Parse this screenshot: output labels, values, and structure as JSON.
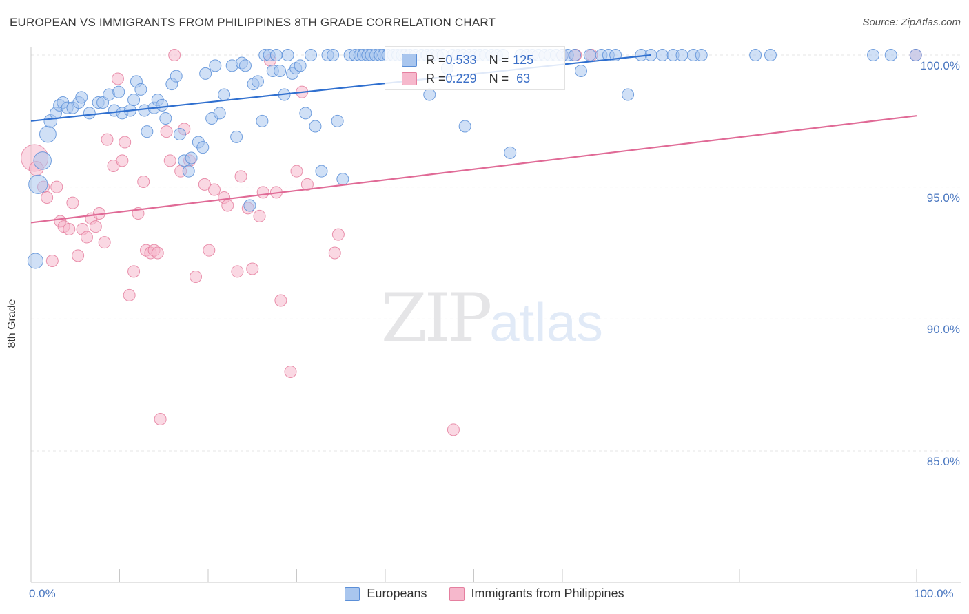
{
  "title": "EUROPEAN VS IMMIGRANTS FROM PHILIPPINES 8TH GRADE CORRELATION CHART",
  "source": "Source: ZipAtlas.com",
  "watermark": {
    "zip": "ZIP",
    "atlas": "atlas"
  },
  "legend": {
    "europeans": {
      "r_label": "R = ",
      "r_value": "0.533",
      "n_label": "N = ",
      "n_value": "125"
    },
    "philippines": {
      "r_label": "R = ",
      "r_value": "0.229",
      "n_label": "N = ",
      "n_value": " 63"
    }
  },
  "bottom_legend": {
    "europeans": "Europeans",
    "philippines": "Immigrants from Philippines"
  },
  "colors": {
    "blue_fill": "#a9c6ee",
    "blue_stroke": "#5b8fd8",
    "blue_line": "#2f6fcf",
    "pink_fill": "#f6b8cc",
    "pink_stroke": "#e57f9f",
    "pink_line": "#e06a96",
    "tick_text": "#4a77c0",
    "grid": "#e6e6e6"
  },
  "chart_data": {
    "type": "scatter",
    "title": "EUROPEAN VS IMMIGRANTS FROM PHILIPPINES 8TH GRADE CORRELATION CHART",
    "xlabel": "",
    "ylabel": "8th Grade",
    "xlim": [
      0,
      100
    ],
    "ylim": [
      80.5,
      100.5
    ],
    "x_tick_labels": [
      "0.0%",
      "100.0%"
    ],
    "y_ticks": [
      {
        "value": 100,
        "label": "100.0%"
      },
      {
        "value": 95,
        "label": "95.0%"
      },
      {
        "value": 90,
        "label": "90.0%"
      },
      {
        "value": 85,
        "label": "85.0%"
      }
    ],
    "series": [
      {
        "name": "Europeans",
        "r": 0.533,
        "n": 125,
        "trend": {
          "x0": 0,
          "y0": 97.5,
          "x1": 70,
          "y1": 100.0
        },
        "points": [
          [
            0.5,
            92.2,
            1.3
          ],
          [
            0.8,
            95.1,
            1.6
          ],
          [
            1.3,
            96.0,
            1.5
          ],
          [
            1.9,
            97.0,
            1.4
          ],
          [
            2.2,
            97.5,
            1.1
          ],
          [
            2.8,
            97.8,
            1.0
          ],
          [
            3.2,
            98.1,
            1.0
          ],
          [
            3.6,
            98.2,
            1.0
          ],
          [
            4.1,
            98.0,
            1.0
          ],
          [
            4.7,
            98.0,
            1.0
          ],
          [
            5.4,
            98.2,
            1.0
          ],
          [
            5.7,
            98.4,
            1.0
          ],
          [
            6.6,
            97.8,
            1.0
          ],
          [
            7.6,
            98.2,
            1.0
          ],
          [
            8.1,
            98.2,
            1.0
          ],
          [
            8.8,
            98.5,
            1.0
          ],
          [
            9.4,
            97.9,
            1.0
          ],
          [
            9.9,
            98.6,
            1.0
          ],
          [
            10.3,
            97.8,
            1.0
          ],
          [
            11.2,
            97.9,
            1.0
          ],
          [
            11.6,
            98.3,
            1.0
          ],
          [
            11.9,
            99.0,
            1.0
          ],
          [
            12.4,
            98.7,
            1.0
          ],
          [
            12.8,
            97.9,
            1.0
          ],
          [
            13.1,
            97.1,
            1.0
          ],
          [
            13.9,
            98.0,
            1.0
          ],
          [
            14.3,
            98.3,
            1.0
          ],
          [
            14.8,
            98.1,
            1.0
          ],
          [
            15.2,
            97.6,
            1.0
          ],
          [
            15.9,
            98.9,
            1.0
          ],
          [
            16.4,
            99.2,
            1.0
          ],
          [
            16.8,
            97.0,
            1.0
          ],
          [
            17.3,
            96.0,
            1.0
          ],
          [
            17.8,
            95.6,
            1.0
          ],
          [
            18.1,
            96.1,
            1.0
          ],
          [
            18.9,
            96.7,
            1.0
          ],
          [
            19.4,
            96.5,
            1.0
          ],
          [
            19.7,
            99.3,
            1.0
          ],
          [
            20.4,
            97.6,
            1.0
          ],
          [
            20.8,
            99.6,
            1.0
          ],
          [
            21.3,
            97.8,
            1.0
          ],
          [
            21.8,
            98.5,
            1.0
          ],
          [
            22.7,
            99.6,
            1.0
          ],
          [
            23.2,
            96.9,
            1.0
          ],
          [
            23.8,
            99.7,
            1.0
          ],
          [
            24.2,
            99.6,
            1.0
          ],
          [
            24.7,
            94.3,
            1.0
          ],
          [
            25.1,
            98.9,
            1.0
          ],
          [
            25.6,
            99.0,
            1.0
          ],
          [
            26.1,
            97.5,
            1.0
          ],
          [
            26.4,
            100.0,
            1.0
          ],
          [
            26.9,
            100.0,
            1.0
          ],
          [
            27.3,
            99.4,
            1.0
          ],
          [
            27.7,
            100.0,
            1.0
          ],
          [
            28.1,
            99.4,
            1.0
          ],
          [
            28.6,
            98.5,
            1.0
          ],
          [
            29.0,
            100.0,
            1.0
          ],
          [
            29.5,
            99.3,
            1.0
          ],
          [
            29.9,
            99.5,
            1.0
          ],
          [
            30.4,
            99.6,
            1.0
          ],
          [
            31.0,
            97.8,
            1.0
          ],
          [
            31.6,
            100.0,
            1.0
          ],
          [
            32.1,
            97.3,
            1.0
          ],
          [
            32.8,
            95.6,
            1.0
          ],
          [
            33.5,
            100.0,
            1.0
          ],
          [
            34.1,
            100.0,
            1.0
          ],
          [
            34.6,
            97.5,
            1.0
          ],
          [
            35.2,
            95.3,
            1.0
          ],
          [
            36.0,
            100.0,
            1.0
          ],
          [
            36.6,
            100.0,
            1.0
          ],
          [
            37.1,
            100.0,
            1.0
          ],
          [
            37.5,
            100.0,
            1.0
          ],
          [
            38.0,
            100.0,
            1.0
          ],
          [
            38.4,
            100.0,
            1.0
          ],
          [
            38.9,
            100.0,
            1.0
          ],
          [
            39.4,
            100.0,
            1.0
          ],
          [
            39.8,
            100.0,
            1.0
          ],
          [
            40.3,
            100.0,
            1.0
          ],
          [
            40.9,
            100.0,
            1.0
          ],
          [
            41.4,
            100.0,
            1.0
          ],
          [
            41.9,
            100.0,
            1.0
          ],
          [
            42.3,
            100.0,
            1.0
          ],
          [
            42.8,
            100.0,
            1.0
          ],
          [
            43.4,
            100.0,
            1.0
          ],
          [
            44.1,
            100.0,
            1.0
          ],
          [
            44.7,
            100.0,
            1.0
          ],
          [
            45.3,
            100.0,
            1.0
          ],
          [
            45.9,
            100.0,
            1.0
          ],
          [
            46.5,
            100.0,
            1.0
          ],
          [
            47.0,
            99.5,
            1.0
          ],
          [
            47.6,
            100.0,
            1.0
          ],
          [
            48.2,
            100.0,
            1.0
          ],
          [
            48.8,
            100.0,
            1.0
          ],
          [
            49.5,
            100.0,
            1.0
          ],
          [
            50.1,
            100.0,
            1.0
          ],
          [
            50.7,
            100.0,
            1.0
          ],
          [
            51.3,
            100.0,
            1.0
          ],
          [
            52.0,
            100.0,
            1.0
          ],
          [
            52.6,
            100.0,
            1.0
          ],
          [
            53.3,
            100.0,
            1.0
          ],
          [
            54.1,
            96.3,
            1.0
          ],
          [
            55.3,
            100.0,
            1.0
          ],
          [
            56.0,
            100.0,
            1.0
          ],
          [
            56.6,
            100.0,
            1.0
          ],
          [
            57.3,
            100.0,
            1.0
          ],
          [
            58.0,
            100.0,
            1.0
          ],
          [
            58.6,
            100.0,
            1.0
          ],
          [
            59.3,
            100.0,
            1.0
          ],
          [
            60.0,
            100.0,
            1.0
          ],
          [
            60.6,
            100.0,
            1.0
          ],
          [
            61.4,
            100.0,
            1.0
          ],
          [
            62.1,
            99.4,
            1.0
          ],
          [
            63.1,
            100.0,
            1.0
          ],
          [
            64.4,
            100.0,
            1.0
          ],
          [
            65.2,
            100.0,
            1.0
          ],
          [
            66.0,
            100.0,
            1.0
          ],
          [
            67.4,
            98.5,
            1.0
          ],
          [
            68.9,
            100.0,
            1.0
          ],
          [
            70.0,
            100.0,
            1.0
          ],
          [
            71.3,
            100.0,
            1.0
          ],
          [
            72.5,
            100.0,
            1.0
          ],
          [
            73.5,
            100.0,
            1.0
          ],
          [
            74.8,
            100.0,
            1.0
          ],
          [
            75.7,
            100.0,
            1.0
          ],
          [
            81.8,
            100.0,
            1.0
          ],
          [
            83.5,
            100.0,
            1.0
          ],
          [
            95.1,
            100.0,
            1.0
          ],
          [
            97.1,
            100.0,
            1.0
          ],
          [
            99.9,
            100.0,
            1.0
          ],
          [
            45.0,
            98.5,
            1.0
          ],
          [
            49.0,
            97.3,
            1.0
          ]
        ]
      },
      {
        "name": "Immigrants from Philippines",
        "r": 0.229,
        "n": 63,
        "trend": {
          "x0": 0,
          "y0": 93.65,
          "x1": 100,
          "y1": 97.7
        },
        "points": [
          [
            0.4,
            96.1,
            2.3
          ],
          [
            0.6,
            95.7,
            1.2
          ],
          [
            1.4,
            95.0,
            1.0
          ],
          [
            1.8,
            94.6,
            1.0
          ],
          [
            2.4,
            92.2,
            1.0
          ],
          [
            2.9,
            95.0,
            1.0
          ],
          [
            3.3,
            93.7,
            1.0
          ],
          [
            3.7,
            93.5,
            1.0
          ],
          [
            4.3,
            93.4,
            1.0
          ],
          [
            4.7,
            94.4,
            1.0
          ],
          [
            5.3,
            92.4,
            1.0
          ],
          [
            5.8,
            93.4,
            1.0
          ],
          [
            6.3,
            93.1,
            1.0
          ],
          [
            6.8,
            93.8,
            1.0
          ],
          [
            7.3,
            93.5,
            1.0
          ],
          [
            7.7,
            94.0,
            1.0
          ],
          [
            8.3,
            92.9,
            1.0
          ],
          [
            8.6,
            96.8,
            1.0
          ],
          [
            9.3,
            95.8,
            1.0
          ],
          [
            9.8,
            99.1,
            1.0
          ],
          [
            10.3,
            96.0,
            1.0
          ],
          [
            10.6,
            96.7,
            1.0
          ],
          [
            11.1,
            90.9,
            1.0
          ],
          [
            11.6,
            91.8,
            1.0
          ],
          [
            12.1,
            94.0,
            1.0
          ],
          [
            12.7,
            95.2,
            1.0
          ],
          [
            13.0,
            92.6,
            1.0
          ],
          [
            13.5,
            92.5,
            1.0
          ],
          [
            13.9,
            92.6,
            1.0
          ],
          [
            14.3,
            92.5,
            1.0
          ],
          [
            14.6,
            86.2,
            1.0
          ],
          [
            15.3,
            97.1,
            1.0
          ],
          [
            15.7,
            96.0,
            1.0
          ],
          [
            16.2,
            100.0,
            1.0
          ],
          [
            16.9,
            95.6,
            1.0
          ],
          [
            17.3,
            97.2,
            1.0
          ],
          [
            17.9,
            96.0,
            1.0
          ],
          [
            18.6,
            91.6,
            1.0
          ],
          [
            19.6,
            95.1,
            1.0
          ],
          [
            20.1,
            92.6,
            1.0
          ],
          [
            20.7,
            94.9,
            1.0
          ],
          [
            21.8,
            94.6,
            1.0
          ],
          [
            22.2,
            94.3,
            1.0
          ],
          [
            23.3,
            91.8,
            1.0
          ],
          [
            23.7,
            95.4,
            1.0
          ],
          [
            24.5,
            94.2,
            1.0
          ],
          [
            25.0,
            91.9,
            1.0
          ],
          [
            25.8,
            93.9,
            1.0
          ],
          [
            26.2,
            94.8,
            1.0
          ],
          [
            27.0,
            99.8,
            1.0
          ],
          [
            27.7,
            94.8,
            1.0
          ],
          [
            28.2,
            90.7,
            1.0
          ],
          [
            29.3,
            88.0,
            1.0
          ],
          [
            30.0,
            95.6,
            1.0
          ],
          [
            30.6,
            98.6,
            1.0
          ],
          [
            31.2,
            95.1,
            1.0
          ],
          [
            34.3,
            92.5,
            1.0
          ],
          [
            34.7,
            93.2,
            1.0
          ],
          [
            47.7,
            85.8,
            1.0
          ],
          [
            60.0,
            100.0,
            1.0
          ],
          [
            61.5,
            100.0,
            1.0
          ],
          [
            63.3,
            100.0,
            1.0
          ],
          [
            99.9,
            100.0,
            1.0
          ]
        ]
      }
    ]
  }
}
